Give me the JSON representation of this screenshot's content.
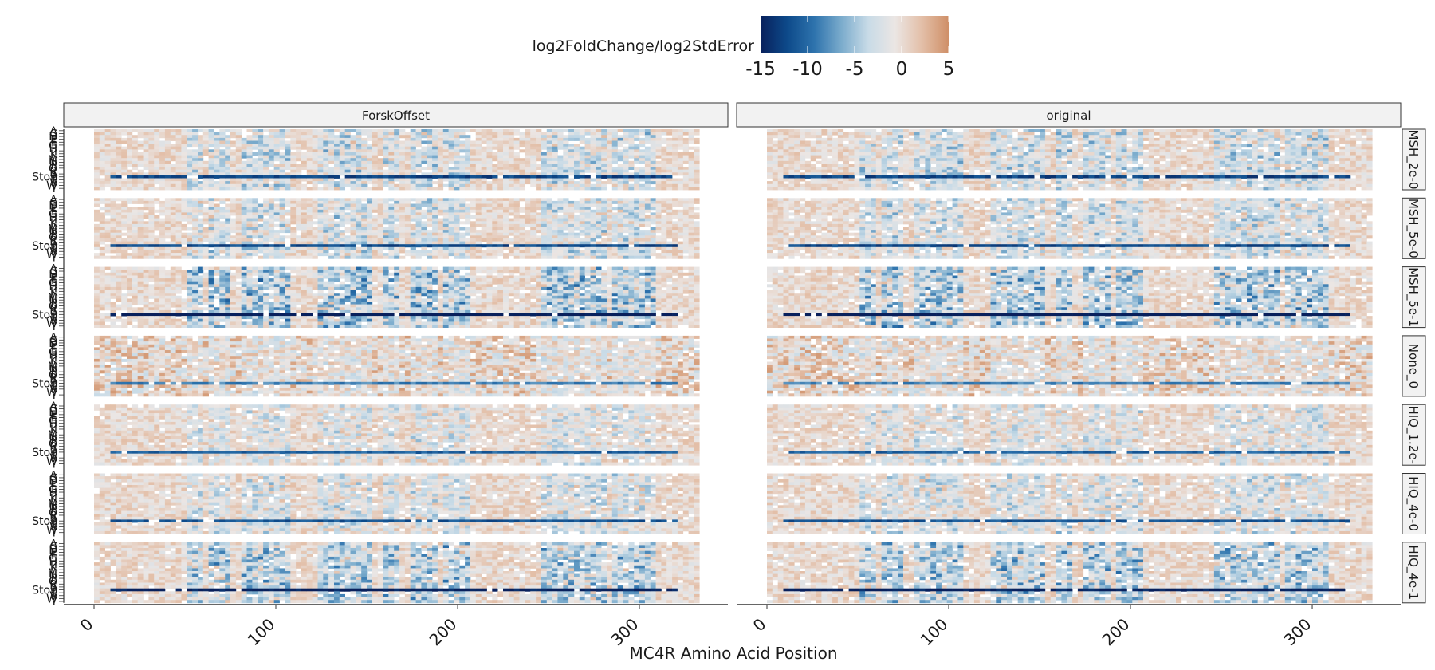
{
  "chart_data": {
    "type": "heatmap",
    "title": "",
    "xlabel": "MC4R Amino Acid Position",
    "ylabel": "",
    "x_range": [
      1,
      332
    ],
    "x_ticks": [
      0,
      100,
      200,
      300
    ],
    "legend": {
      "title": "log2FoldChange/log2StdError",
      "position": "top",
      "range": [
        -15,
        5
      ],
      "ticks": [
        "-15",
        "-10",
        "-5",
        "0",
        "5"
      ],
      "colors": [
        "#08205c",
        "#0d4a8a",
        "#2e73ad",
        "#7aabcc",
        "#c8dbe7",
        "#ebe6e4",
        "#e3bfa8",
        "#cf8f67"
      ]
    },
    "column_facets": [
      "ForskOffset",
      "original"
    ],
    "row_facets": [
      "MSH_2e-0",
      "MSH_5e-0",
      "MSH_5e-1",
      "None_0",
      "HIQ_1.2e-",
      "HIQ_4e-0",
      "HIQ_4e-1"
    ],
    "y_labels": [
      "A",
      "C",
      "D",
      "E",
      "F",
      "G",
      "H",
      "I",
      "K",
      "L",
      "M",
      "N",
      "P",
      "Q",
      "R",
      "S",
      "Stop",
      "T",
      "V",
      "W",
      "Y"
    ],
    "y_label_text": "Stop",
    "y_visible_label": "Stop",
    "bands": [
      [
        50,
        58
      ],
      [
        63,
        75
      ],
      [
        80,
        106
      ],
      [
        122,
        152
      ],
      [
        158,
        168
      ],
      [
        174,
        189
      ],
      [
        192,
        206
      ],
      [
        245,
        280
      ],
      [
        286,
        307
      ]
    ],
    "stop_row_start": 9,
    "cell_values_note": "",
    "facet_intensity": {
      "MSH_2e-0": 0.55,
      "MSH_5e-0": 0.5,
      "MSH_5e-1": 0.95,
      "None_0": 0.12,
      "HIQ_1.2e-": 0.32,
      "HIQ_4e-0": 0.42,
      "HIQ_4e-1": 0.85
    }
  }
}
